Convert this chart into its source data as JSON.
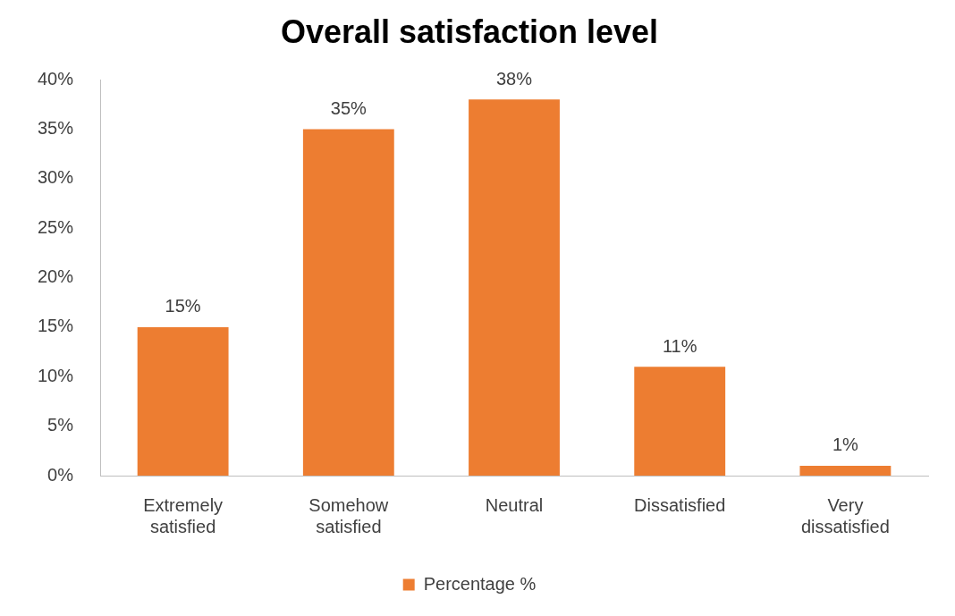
{
  "chart_data": {
    "type": "bar",
    "title": "Overall satisfaction level",
    "categories": [
      "Extremely satisfied",
      "Somehow satisfied",
      "Neutral",
      "Dissatisfied",
      "Very dissatisfied"
    ],
    "series": [
      {
        "name": "Percentage %",
        "color": "#ed7d31",
        "values": [
          15,
          35,
          38,
          11,
          1
        ]
      }
    ],
    "value_labels": [
      "15%",
      "35%",
      "38%",
      "11%",
      "1%"
    ],
    "ylim": [
      0,
      40
    ],
    "yticks": [
      {
        "value": 0,
        "label": "0%"
      },
      {
        "value": 5,
        "label": "5%"
      },
      {
        "value": 10,
        "label": "10%"
      },
      {
        "value": 15,
        "label": "15%"
      },
      {
        "value": 20,
        "label": "20%"
      },
      {
        "value": 25,
        "label": "25%"
      },
      {
        "value": 30,
        "label": "30%"
      },
      {
        "value": 35,
        "label": "35%"
      },
      {
        "value": 40,
        "label": "40%"
      }
    ],
    "grid": false,
    "legend": "bottom"
  }
}
